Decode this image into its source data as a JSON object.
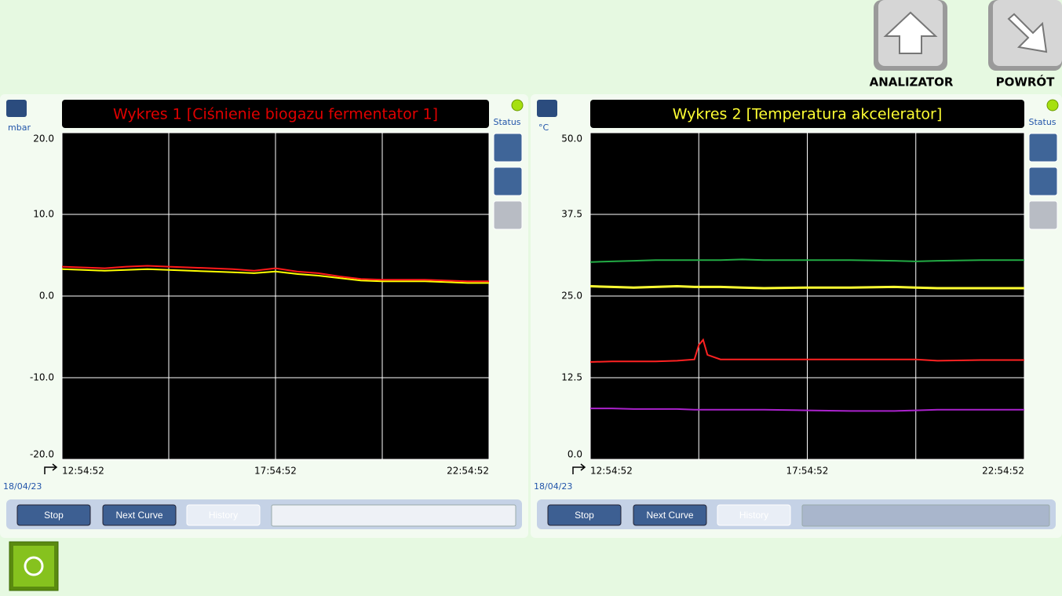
{
  "header": {
    "buttons": [
      "ANALIZATOR",
      "POWRÓT"
    ]
  },
  "chart_data": [
    {
      "type": "line",
      "title": "Wykres 1 [Ciśnienie biogazu fermentator 1]",
      "title_color": "#e00000",
      "unit": "mbar",
      "date": "18/04/23",
      "status": "Status",
      "controls": [
        "Stop",
        "Next Curve",
        "History"
      ],
      "xlim": [
        0,
        10
      ],
      "xticks": [
        {
          "value": 0,
          "label": "12:54:52"
        },
        {
          "value": 2.5,
          "label": null
        },
        {
          "value": 5,
          "label": "17:54:52"
        },
        {
          "value": 7.5,
          "label": null
        },
        {
          "value": 10,
          "label": "22:54:52"
        }
      ],
      "ylim": [
        -20,
        20
      ],
      "yticks": [
        {
          "value": -20,
          "label": "-20.0"
        },
        {
          "value": -10,
          "label": "-10.0"
        },
        {
          "value": 0,
          "label": "0.0"
        },
        {
          "value": 10,
          "label": "10.0"
        },
        {
          "value": 20,
          "label": "20.0"
        }
      ],
      "grid": true,
      "x": [
        0,
        0.5,
        1,
        1.5,
        2,
        2.5,
        3,
        3.5,
        4,
        4.5,
        5,
        5.5,
        6,
        6.5,
        7,
        7.5,
        8,
        8.5,
        9,
        9.5,
        10
      ],
      "series": [
        {
          "color": "#ffff00",
          "values": [
            3.3,
            3.2,
            3.1,
            3.2,
            3.3,
            3.2,
            3.1,
            3.0,
            2.9,
            2.8,
            3.0,
            2.7,
            2.5,
            2.2,
            1.9,
            1.8,
            1.8,
            1.8,
            1.7,
            1.6,
            1.6
          ]
        },
        {
          "color": "#ff1a1a",
          "values": [
            3.6,
            3.5,
            3.4,
            3.6,
            3.7,
            3.6,
            3.5,
            3.4,
            3.3,
            3.1,
            3.4,
            3.0,
            2.8,
            2.4,
            2.1,
            2.0,
            2.0,
            2.0,
            1.9,
            1.8,
            1.8
          ]
        }
      ]
    },
    {
      "type": "line",
      "title": "Wykres 2 [Temperatura akcelerator]",
      "title_color": "#ffff33",
      "unit": "°C",
      "date": "18/04/23",
      "status": "Status",
      "controls": [
        "Stop",
        "Next Curve",
        "History"
      ],
      "xlim": [
        0,
        10
      ],
      "xticks": [
        {
          "value": 0,
          "label": "12:54:52"
        },
        {
          "value": 2.5,
          "label": null
        },
        {
          "value": 5,
          "label": "17:54:52"
        },
        {
          "value": 7.5,
          "label": null
        },
        {
          "value": 10,
          "label": "22:54:52"
        }
      ],
      "ylim": [
        0,
        50
      ],
      "yticks": [
        {
          "value": 0,
          "label": "0.0"
        },
        {
          "value": 12.5,
          "label": "12.5"
        },
        {
          "value": 25,
          "label": "25.0"
        },
        {
          "value": 37.5,
          "label": "37.5"
        },
        {
          "value": 50,
          "label": "50.0"
        }
      ],
      "grid": true,
      "x": [
        0,
        0.5,
        1,
        1.5,
        2,
        2.4,
        2.5,
        2.6,
        2.7,
        3,
        3.5,
        4,
        5,
        6,
        7,
        7.5,
        8,
        9,
        10
      ],
      "series": [
        {
          "color": "#22aa44",
          "values": [
            30.2,
            30.3,
            30.4,
            30.5,
            30.5,
            30.5,
            30.5,
            30.5,
            30.5,
            30.5,
            30.6,
            30.5,
            30.5,
            30.5,
            30.4,
            30.3,
            30.4,
            30.5,
            30.5
          ]
        },
        {
          "color": "#ffff33",
          "values": [
            26.5,
            26.4,
            26.3,
            26.4,
            26.5,
            26.4,
            26.4,
            26.4,
            26.4,
            26.4,
            26.3,
            26.2,
            26.3,
            26.3,
            26.4,
            26.3,
            26.2,
            26.2,
            26.2
          ]
        },
        {
          "color": "#ff2222",
          "values": [
            14.9,
            15.0,
            15.0,
            15.0,
            15.1,
            15.3,
            17.5,
            18.3,
            16.0,
            15.3,
            15.3,
            15.3,
            15.3,
            15.3,
            15.3,
            15.3,
            15.1,
            15.2,
            15.2
          ]
        },
        {
          "color": "#aa22cc",
          "values": [
            7.8,
            7.8,
            7.7,
            7.7,
            7.7,
            7.6,
            7.6,
            7.6,
            7.6,
            7.6,
            7.6,
            7.6,
            7.5,
            7.4,
            7.4,
            7.5,
            7.6,
            7.6,
            7.6
          ]
        }
      ]
    }
  ]
}
